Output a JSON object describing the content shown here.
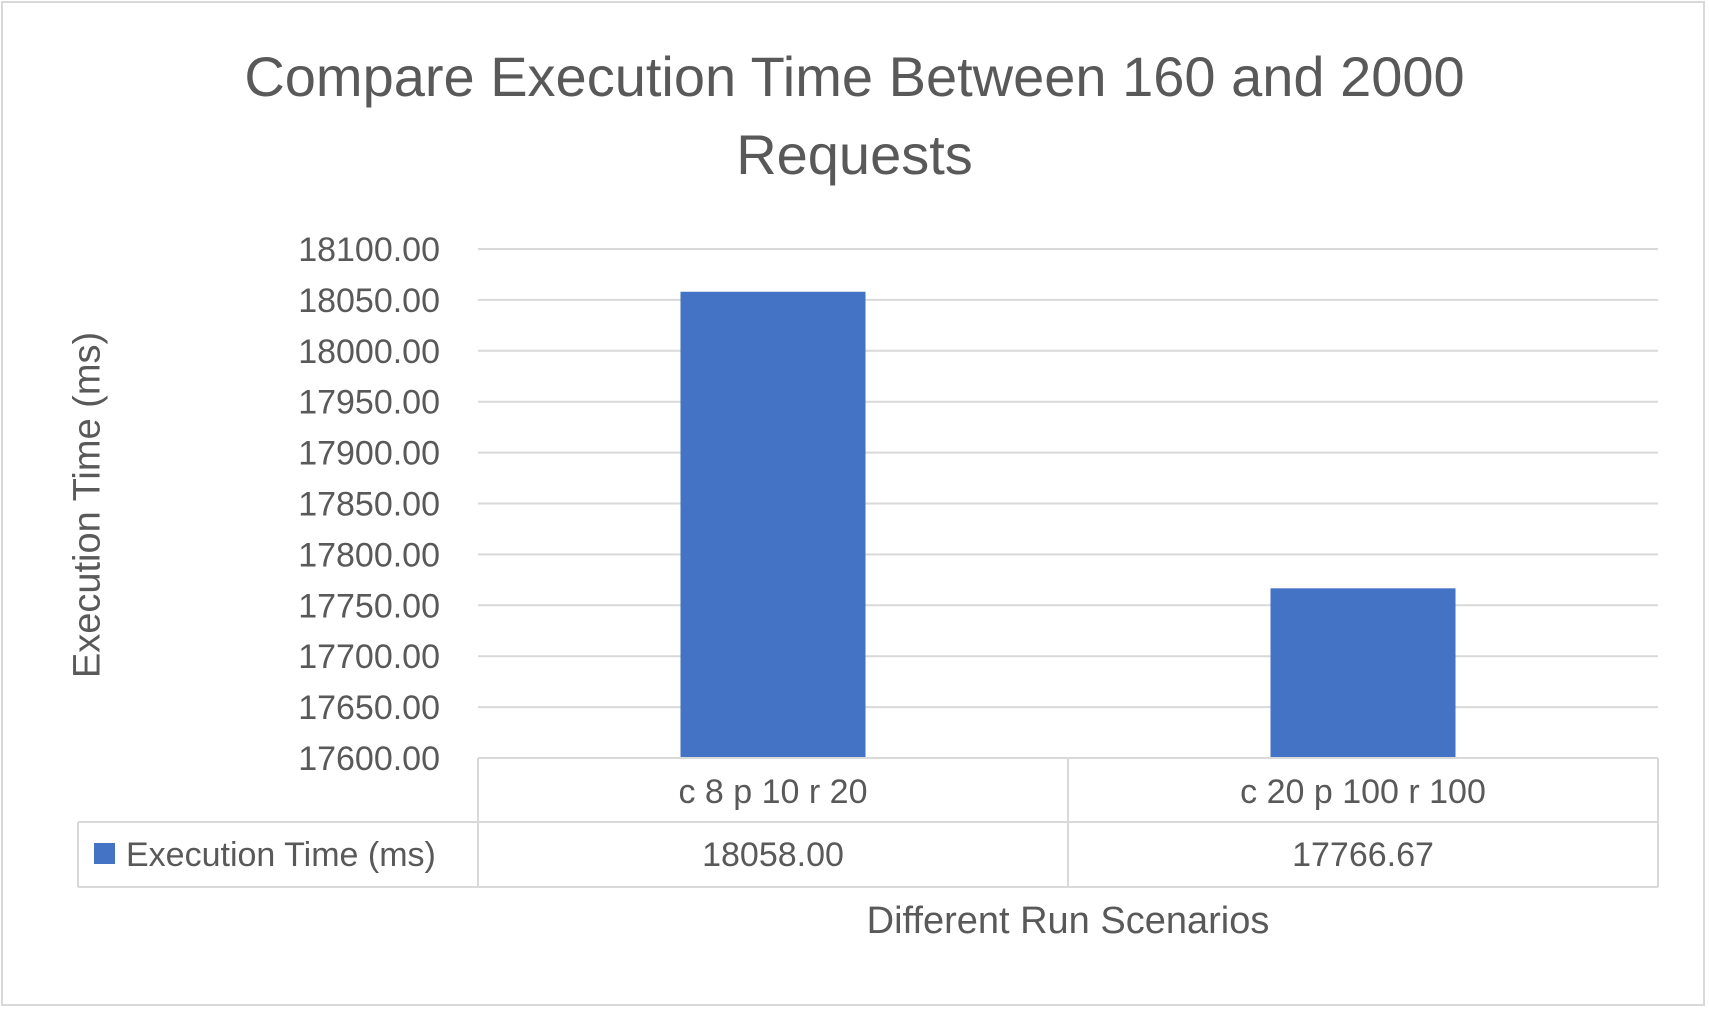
{
  "chart_data": {
    "type": "bar",
    "title_lines": [
      "Compare Execution Time Between 160 and 2000",
      "Requests"
    ],
    "xlabel": "Different Run Scenarios",
    "ylabel": "Execution Time (ms)",
    "categories": [
      "c 8 p 10 r 20",
      "c 20 p 100 r 100"
    ],
    "series": [
      {
        "name": "Execution Time (ms)",
        "values": [
          18058.0,
          17766.67
        ],
        "display_values": [
          "18058.00",
          "17766.67"
        ],
        "color": "#4472c4"
      }
    ],
    "ylim": [
      17600,
      18100
    ],
    "yticks": [
      "17600.00",
      "17650.00",
      "17700.00",
      "17750.00",
      "17800.00",
      "17850.00",
      "17900.00",
      "17950.00",
      "18000.00",
      "18050.00",
      "18100.00"
    ],
    "grid": true,
    "legend": "data-table",
    "colors": {
      "gridline": "#d9d9d9",
      "text": "#595959",
      "bar": "#4472c4"
    }
  }
}
